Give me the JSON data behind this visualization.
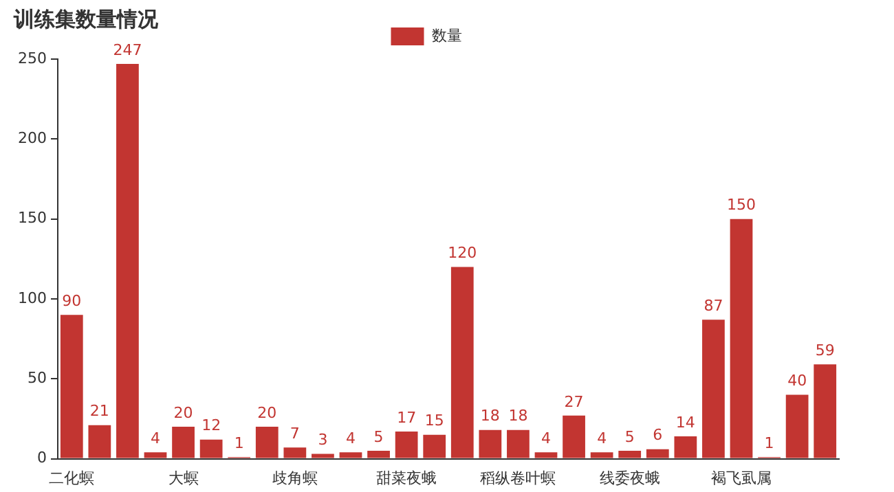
{
  "chart_data": {
    "type": "bar",
    "title": "训练集数量情况",
    "categories": [
      "二化螟",
      null,
      null,
      null,
      "大螟",
      null,
      null,
      null,
      "歧角螟",
      null,
      null,
      null,
      "甜菜夜蛾",
      null,
      null,
      null,
      "稻纵卷叶螟",
      null,
      null,
      null,
      "线委夜蛾",
      null,
      null,
      null,
      "褐飞虱属",
      null,
      null,
      null
    ],
    "series": [
      {
        "name": "数量",
        "color": "#c23531",
        "values": [
          90,
          21,
          247,
          4,
          20,
          12,
          1,
          20,
          7,
          3,
          4,
          5,
          17,
          15,
          120,
          18,
          18,
          4,
          27,
          4,
          5,
          6,
          14,
          87,
          150,
          1,
          40,
          59
        ]
      }
    ],
    "ylim": [
      0,
      250
    ],
    "yticks": [
      0,
      50,
      100,
      150,
      200,
      250
    ],
    "grid": false,
    "legend": "top",
    "data_labels": true
  }
}
